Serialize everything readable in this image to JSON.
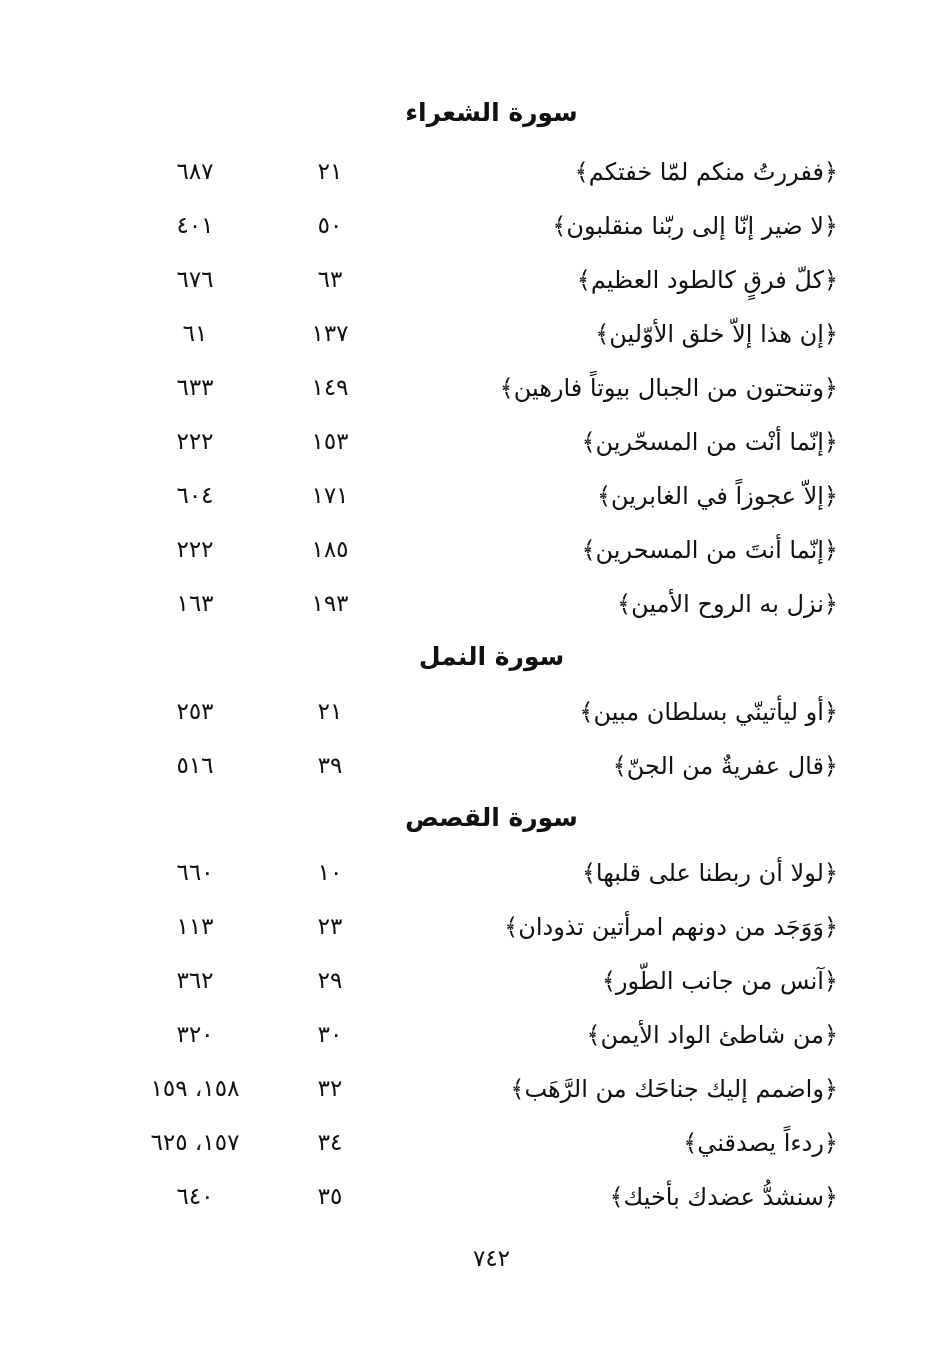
{
  "sections": [
    {
      "title": "سورة الشعراء",
      "rows": [
        {
          "verse": "﴿ففررتُ منكم لمّا خفتكم﴾",
          "ayah": "٢١",
          "page": "٦٨٧"
        },
        {
          "verse": "﴿لا ضير إنّا إلى ربّنا منقلبون﴾",
          "ayah": "٥٠",
          "page": "٤٠١"
        },
        {
          "verse": "﴿كلّ فرقٍ كالطود العظيم﴾",
          "ayah": "٦٣",
          "page": "٦٧٦"
        },
        {
          "verse": "﴿إن هذا إلاّ خلق الأوّلين﴾",
          "ayah": "١٣٧",
          "page": "٦١"
        },
        {
          "verse": "﴿وتنحتون من الجبال بيوتاً فارهين﴾",
          "ayah": "١٤٩",
          "page": "٦٣٣"
        },
        {
          "verse": "﴿إنّما أنْت من المسحّرين﴾",
          "ayah": "١٥٣",
          "page": "٢٢٢"
        },
        {
          "verse": "﴿إلاّ عجوزاً في الغابرين﴾",
          "ayah": "١٧١",
          "page": "٦٠٤"
        },
        {
          "verse": "﴿إنّما أنتَ من المسحرين﴾",
          "ayah": "١٨٥",
          "page": "٢٢٢"
        },
        {
          "verse": "﴿نزل به الروح الأمين﴾",
          "ayah": "١٩٣",
          "page": "١٦٣"
        }
      ]
    },
    {
      "title": "سورة النمل",
      "rows": [
        {
          "verse": "﴿أو ليأتينّي بسلطان مبين﴾",
          "ayah": "٢١",
          "page": "٢٥٣"
        },
        {
          "verse": "﴿قال عفريةٌ من الجنّ﴾",
          "ayah": "٣٩",
          "page": "٥١٦"
        }
      ]
    },
    {
      "title": "سورة القصص",
      "rows": [
        {
          "verse": "﴿لولا أن ربطنا على قلبها﴾",
          "ayah": "١٠",
          "page": "٦٦٠"
        },
        {
          "verse": "﴿وَوَجَد من دونهم امرأتين تذودان﴾",
          "ayah": "٢٣",
          "page": "١١٣"
        },
        {
          "verse": "﴿آنس من جانب الطّور﴾",
          "ayah": "٢٩",
          "page": "٣٦٢"
        },
        {
          "verse": "﴿من شاطئ الواد الأيمن﴾",
          "ayah": "٣٠",
          "page": "٣٢٠"
        },
        {
          "verse": "﴿واضمم إليك جناحَك من الرَّهَب﴾",
          "ayah": "٣٢",
          "page": "١٥٨، ١٥٩"
        },
        {
          "verse": "﴿ردءاً يصدقني﴾",
          "ayah": "٣٤",
          "page": "١٥٧، ٦٢٥"
        },
        {
          "verse": "﴿سنشدُّ عضدك بأخيك﴾",
          "ayah": "٣٥",
          "page": "٦٤٠"
        }
      ]
    }
  ],
  "page_number": "٧٤٢"
}
